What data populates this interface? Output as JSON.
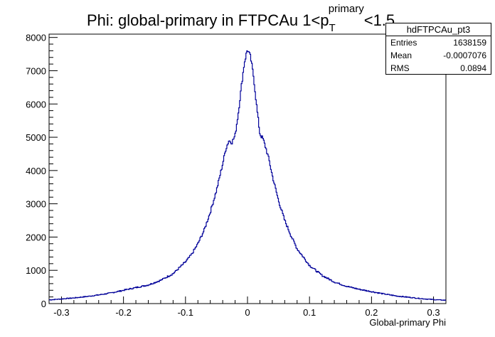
{
  "chart_data": {
    "type": "histogram",
    "title_main": "Phi: global-primary in FTPCAu 1<p",
    "title_sup": "primary",
    "title_sub": "T",
    "title_tail": "<1.5",
    "xlabel": "Global-primary Phi",
    "ylabel": "",
    "xlim": [
      -0.32,
      0.32
    ],
    "ylim": [
      0,
      8100
    ],
    "xticks": [
      -0.3,
      -0.2,
      -0.1,
      0,
      0.1,
      0.2,
      0.3
    ],
    "xtick_labels": [
      "-0.3",
      "-0.2",
      "-0.1",
      "0",
      "0.1",
      "0.2",
      "0.3"
    ],
    "yticks": [
      0,
      1000,
      2000,
      3000,
      4000,
      5000,
      6000,
      7000,
      8000
    ],
    "ytick_labels": [
      "0",
      "1000",
      "2000",
      "3000",
      "4000",
      "5000",
      "6000",
      "7000",
      "8000"
    ],
    "line_color": "#000099",
    "x": [
      -0.32,
      -0.3,
      -0.28,
      -0.26,
      -0.24,
      -0.22,
      -0.2,
      -0.18,
      -0.16,
      -0.14,
      -0.12,
      -0.1,
      -0.09,
      -0.08,
      -0.07,
      -0.06,
      -0.05,
      -0.04,
      -0.035,
      -0.03,
      -0.025,
      -0.02,
      -0.015,
      -0.01,
      -0.005,
      0,
      0.005,
      0.01,
      0.015,
      0.02,
      0.025,
      0.03,
      0.035,
      0.04,
      0.05,
      0.06,
      0.07,
      0.08,
      0.09,
      0.1,
      0.12,
      0.14,
      0.16,
      0.18,
      0.2,
      0.22,
      0.24,
      0.26,
      0.28,
      0.3,
      0.32
    ],
    "y": [
      110,
      140,
      170,
      210,
      260,
      320,
      400,
      480,
      560,
      700,
      900,
      1250,
      1480,
      1800,
      2200,
      2750,
      3400,
      4200,
      4650,
      4900,
      4850,
      5050,
      5700,
      6500,
      7250,
      7650,
      7400,
      6800,
      5900,
      5100,
      4950,
      4650,
      4300,
      3850,
      3100,
      2500,
      2050,
      1650,
      1400,
      1150,
      850,
      650,
      520,
      430,
      360,
      290,
      230,
      190,
      150,
      120,
      100
    ]
  },
  "stats": {
    "name": "hdFTPCAu_pt3",
    "entries_label": "Entries",
    "entries_value": "1638159",
    "mean_label": "Mean",
    "mean_value": "-0.0007076",
    "rms_label": "RMS",
    "rms_value": "0.0894"
  }
}
